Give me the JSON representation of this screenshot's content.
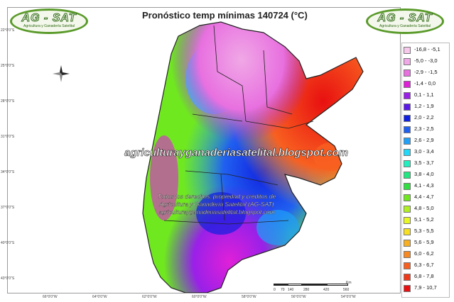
{
  "title": "Pronóstico temp mínimas 140724 (°C)",
  "logo": {
    "brand": "AG - SAT",
    "subtitle": "Agricultura y Ganadería Satelital"
  },
  "watermark": "agriculturayganaderiasatelital.blogspot.com",
  "copyright": [
    "Todos los derechos, propiedad y créditos de",
    "Agricultura y Ganadería Satelital (AG-SAT)",
    "agriculturayganaderiasatelital.blogspot.com"
  ],
  "legend": [
    {
      "label": "-16,8 - -5,1",
      "color": "#f7c8ec"
    },
    {
      "label": "-5,0 - -3,0",
      "color": "#f0a8e6"
    },
    {
      "label": "-2,9 - -1,5",
      "color": "#e870e0"
    },
    {
      "label": "-1,4 - 0,0",
      "color": "#e020d8"
    },
    {
      "label": "0,1 - 1,1",
      "color": "#9a20e8"
    },
    {
      "label": "1,2 - 1,9",
      "color": "#5a18e8"
    },
    {
      "label": "2,0 - 2,2",
      "color": "#1020e0"
    },
    {
      "label": "2,3 - 2,5",
      "color": "#2060f0"
    },
    {
      "label": "2,6 - 2,9",
      "color": "#20a0f8"
    },
    {
      "label": "3,0 - 3,4",
      "color": "#20d8f8"
    },
    {
      "label": "3,5 - 3,7",
      "color": "#20f0c0"
    },
    {
      "label": "3,8 - 4,0",
      "color": "#20e880"
    },
    {
      "label": "4,1 - 4,3",
      "color": "#30e040"
    },
    {
      "label": "4,4 - 4,7",
      "color": "#70e820"
    },
    {
      "label": "4,8 - 5,0",
      "color": "#b0f020"
    },
    {
      "label": "5,1 - 5,2",
      "color": "#e8f820"
    },
    {
      "label": "5,3 - 5,5",
      "color": "#f8e020"
    },
    {
      "label": "5,6 - 5,9",
      "color": "#f8b020"
    },
    {
      "label": "6,0 - 6,2",
      "color": "#f88820"
    },
    {
      "label": "6,3 - 6,7",
      "color": "#f86020"
    },
    {
      "label": "6,8 - 7,8",
      "color": "#f03818"
    },
    {
      "label": "7,9 - 10,7",
      "color": "#e81010"
    }
  ],
  "scale": {
    "ticks": [
      "0",
      "70",
      "140",
      "280",
      "420",
      "560"
    ],
    "unit": "Km"
  },
  "lat_labels": [
    "22°0'0\"S",
    "25°0'0\"S",
    "28°0'0\"S",
    "31°0'0\"S",
    "34°0'0\"S",
    "37°0'0\"S",
    "40°0'0\"S",
    "43°0'0\"S"
  ],
  "lon_labels": [
    "66°0'0\"W",
    "64°0'0\"W",
    "62°0'0\"W",
    "60°0'0\"W",
    "58°0'0\"W",
    "56°0'0\"W",
    "54°0'0\"W"
  ],
  "colors": {
    "logo_green": "#5a9a2a",
    "map_border": "#9a9a9a"
  }
}
